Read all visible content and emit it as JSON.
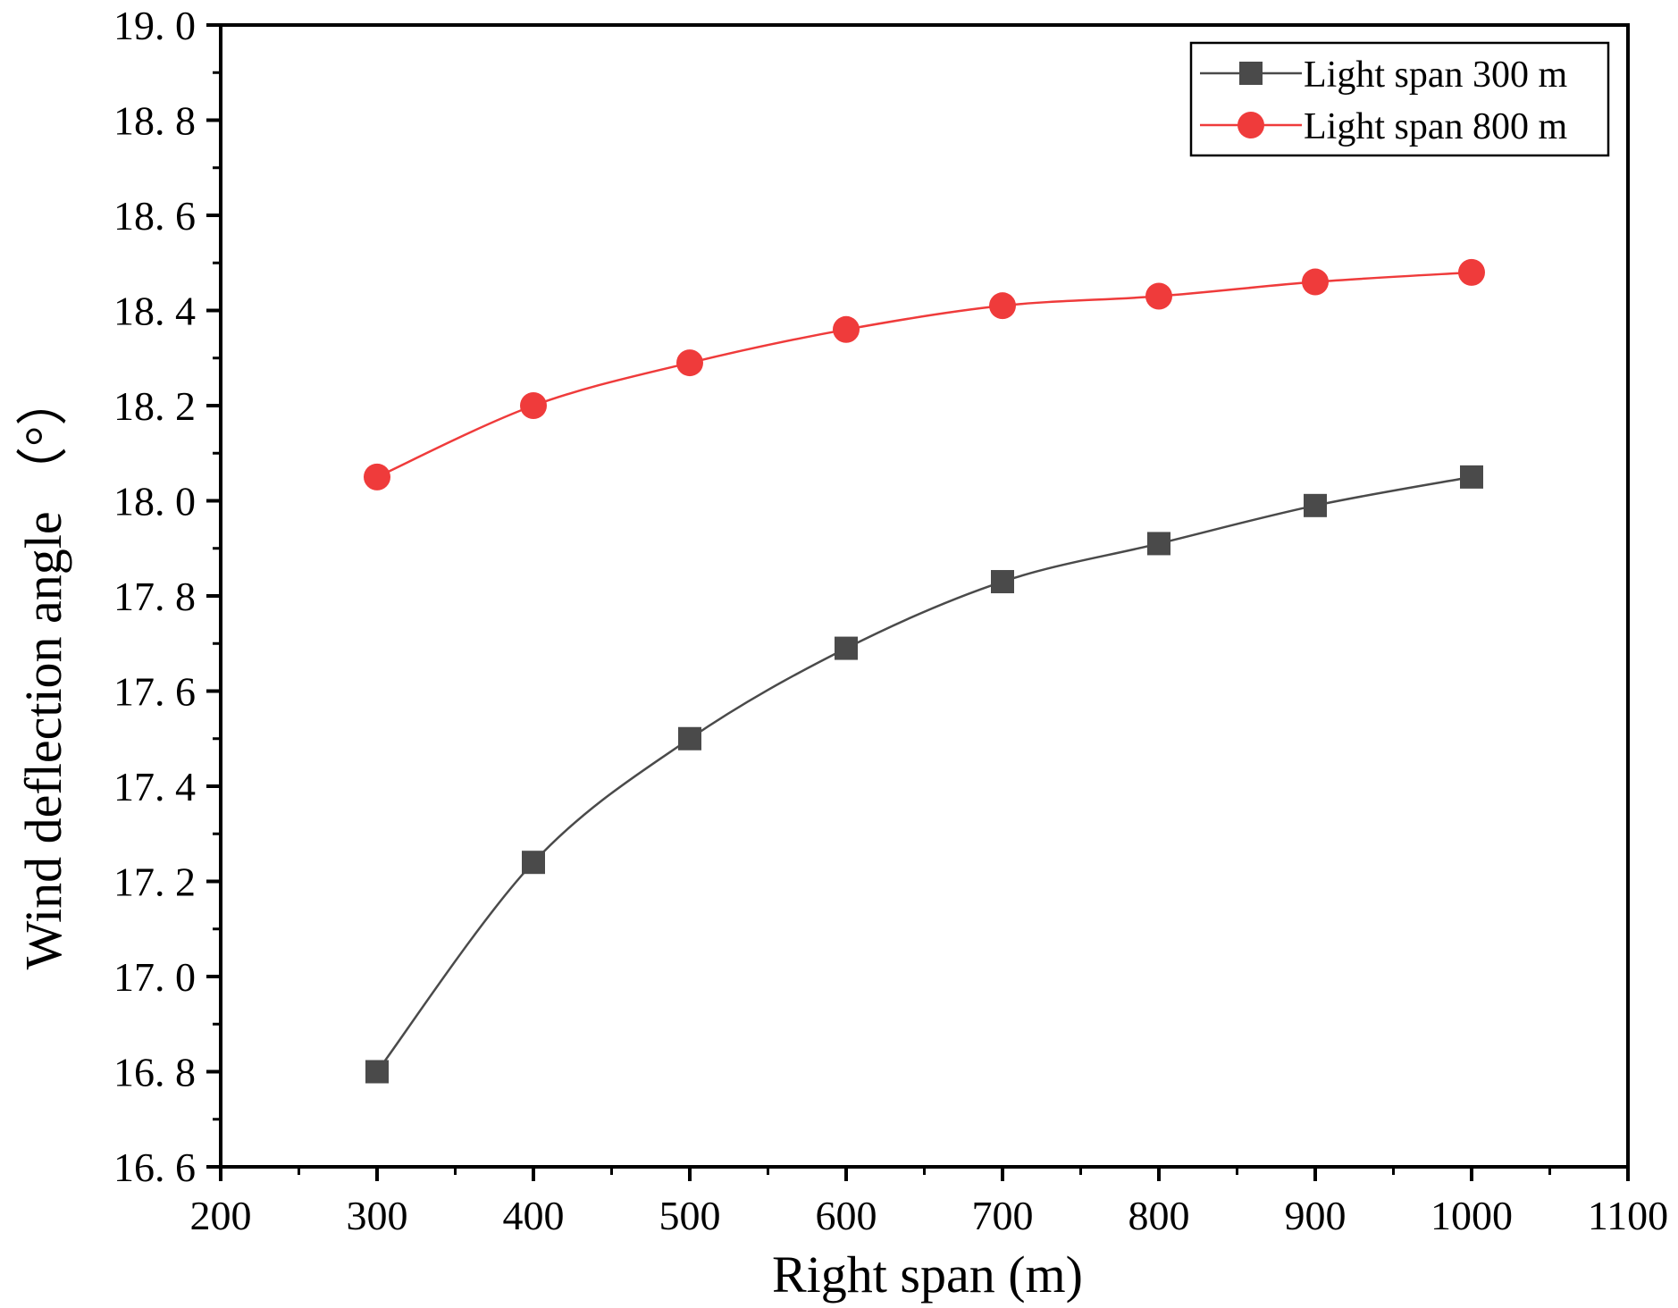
{
  "chart_data": {
    "type": "line",
    "title": "",
    "xlabel": "Right span (m)",
    "ylabel": "Wind deflection angle （°）",
    "xlim": [
      200,
      1100
    ],
    "ylim": [
      16.6,
      19.0
    ],
    "x_ticks": [
      "200",
      "300",
      "400",
      "500",
      "600",
      "700",
      "800",
      "900",
      "1000",
      "1100"
    ],
    "x_tick_values": [
      200,
      300,
      400,
      500,
      600,
      700,
      800,
      900,
      1000,
      1100
    ],
    "y_ticks": [
      "16. 6",
      "16. 8",
      "17. 0",
      "17. 2",
      "17. 4",
      "17. 6",
      "17. 8",
      "18. 0",
      "18. 2",
      "18. 4",
      "18. 6",
      "18. 8",
      "19. 0"
    ],
    "y_tick_values": [
      16.6,
      16.8,
      17.0,
      17.2,
      17.4,
      17.6,
      17.8,
      18.0,
      18.2,
      18.4,
      18.6,
      18.8,
      19.0
    ],
    "grid": false,
    "legend_position": "top-right",
    "x": [
      300,
      400,
      500,
      600,
      700,
      800,
      900,
      1000
    ],
    "series": [
      {
        "name": "Light span 300 m",
        "marker": "square",
        "color": "#4a4a4a",
        "values": [
          16.8,
          17.24,
          17.5,
          17.69,
          17.83,
          17.91,
          17.99,
          18.05
        ]
      },
      {
        "name": "Light span 800 m",
        "marker": "circle",
        "color": "#ef3b3b",
        "values": [
          18.05,
          18.2,
          18.29,
          18.36,
          18.41,
          18.43,
          18.46,
          18.48
        ]
      }
    ]
  }
}
